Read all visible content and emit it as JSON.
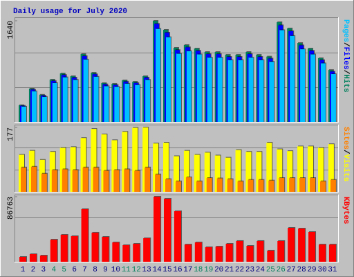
{
  "chart_data": [
    {
      "type": "bar",
      "title": "Daily usage for July 2020",
      "ylim": [
        0,
        1640
      ],
      "yticks": [
        1640
      ],
      "legend_separator": "/",
      "series": [
        {
          "name": "Hits",
          "color": "#00805c",
          "values": [
            270,
            540,
            440,
            685,
            786,
            741,
            1100,
            797,
            629,
            618,
            674,
            651,
            741,
            1640,
            1494,
            1202,
            1247,
            1190,
            1134,
            1134,
            1089,
            1089,
            1134,
            1089,
            1060,
            1617,
            1516,
            1280,
            1190,
            1033,
            842
          ]
        },
        {
          "name": "Files",
          "color": "#0000ff",
          "values": [
            262,
            524,
            427,
            664,
            762,
            719,
            1067,
            773,
            610,
            599,
            654,
            631,
            719,
            1591,
            1449,
            1166,
            1210,
            1154,
            1100,
            1100,
            1056,
            1056,
            1100,
            1056,
            1028,
            1568,
            1471,
            1242,
            1154,
            1002,
            817
          ]
        },
        {
          "name": "Pages",
          "color": "#00c0ff",
          "values": [
            248,
            497,
            405,
            630,
            723,
            682,
            1012,
            733,
            579,
            569,
            620,
            599,
            682,
            1509,
            1374,
            1106,
            1147,
            1095,
            1043,
            1043,
            1002,
            1002,
            1043,
            1002,
            975,
            1488,
            1395,
            1178,
            1095,
            950,
            775
          ]
        }
      ]
    },
    {
      "type": "bar",
      "ylim": [
        0,
        177
      ],
      "yticks": [
        177
      ],
      "legend_separator": "/",
      "series": [
        {
          "name": "Visits",
          "color": "#ffff00",
          "values": [
            102,
            113,
            88,
            110,
            121,
            123,
            148,
            173,
            158,
            142,
            165,
            176,
            177,
            133,
            135,
            98,
            113,
            102,
            108,
            100,
            94,
            115,
            110,
            110,
            135,
            117,
            112,
            125,
            125,
            121,
            131
          ]
        },
        {
          "name": "Sites",
          "color": "#ff8000",
          "values": [
            67,
            69,
            50,
            60,
            62,
            60,
            67,
            67,
            58,
            60,
            62,
            58,
            67,
            48,
            35,
            29,
            40,
            29,
            38,
            37,
            35,
            29,
            33,
            33,
            31,
            38,
            38,
            38,
            38,
            29,
            33
          ]
        }
      ]
    },
    {
      "type": "bar",
      "ylim": [
        0,
        86763
      ],
      "yticks": [
        86763
      ],
      "categories": [
        "1",
        "2",
        "3",
        "4",
        "5",
        "6",
        "7",
        "8",
        "9",
        "10",
        "11",
        "12",
        "13",
        "14",
        "15",
        "16",
        "17",
        "18",
        "19",
        "20",
        "21",
        "22",
        "23",
        "24",
        "25",
        "26",
        "27",
        "28",
        "29",
        "30",
        "31"
      ],
      "category_colors": [
        "#000080",
        "#000080",
        "#000080",
        "#00805c",
        "#00805c",
        "#000080",
        "#000080",
        "#000080",
        "#000080",
        "#000080",
        "#00805c",
        "#00805c",
        "#000080",
        "#000080",
        "#000080",
        "#000080",
        "#000080",
        "#00805c",
        "#00805c",
        "#000080",
        "#000080",
        "#000080",
        "#000080",
        "#000080",
        "#00805c",
        "#00805c",
        "#000080",
        "#000080",
        "#000080",
        "#000080",
        "#000080"
      ],
      "series": [
        {
          "name": "KBytes",
          "color": "#ff0000",
          "values": [
            6460,
            10150,
            8300,
            29500,
            36000,
            34100,
            70100,
            38800,
            33200,
            25800,
            22100,
            24000,
            31400,
            86763,
            84000,
            67400,
            23000,
            25800,
            19400,
            20300,
            24000,
            27700,
            21200,
            27700,
            14800,
            27700,
            45200,
            44300,
            39700,
            23000,
            23000
          ]
        }
      ]
    }
  ]
}
